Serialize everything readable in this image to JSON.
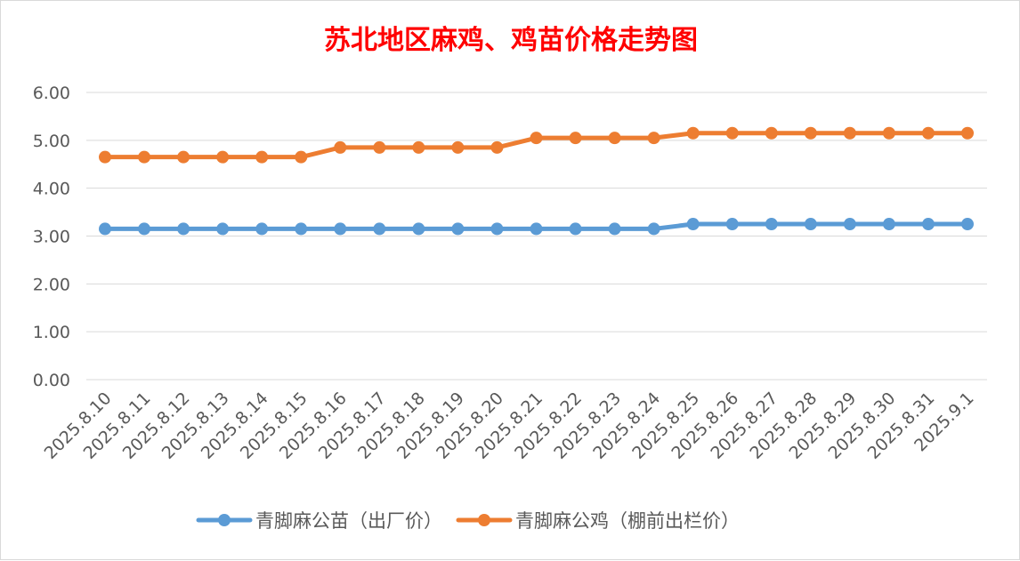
{
  "chart_data": {
    "type": "line",
    "title": "苏北地区麻鸡、鸡苗价格走势图",
    "categories": [
      "2025.8.10",
      "2025.8.11",
      "2025.8.12",
      "2025.8.13",
      "2025.8.14",
      "2025.8.15",
      "2025.8.16",
      "2025.8.17",
      "2025.8.18",
      "2025.8.19",
      "2025.8.20",
      "2025.8.21",
      "2025.8.22",
      "2025.8.23",
      "2025.8.24",
      "2025.8.25",
      "2025.8.26",
      "2025.8.27",
      "2025.8.28",
      "2025.8.29",
      "2025.8.30",
      "2025.8.31",
      "2025.9.1"
    ],
    "series": [
      {
        "name": "青脚麻公苗（出厂价）",
        "color": "#5b9bd5",
        "values": [
          3.15,
          3.15,
          3.15,
          3.15,
          3.15,
          3.15,
          3.15,
          3.15,
          3.15,
          3.15,
          3.15,
          3.15,
          3.15,
          3.15,
          3.15,
          3.25,
          3.25,
          3.25,
          3.25,
          3.25,
          3.25,
          3.25,
          3.25
        ]
      },
      {
        "name": "青脚麻公鸡（棚前出栏价）",
        "color": "#ed7d31",
        "values": [
          4.65,
          4.65,
          4.65,
          4.65,
          4.65,
          4.65,
          4.85,
          4.85,
          4.85,
          4.85,
          4.85,
          5.05,
          5.05,
          5.05,
          5.05,
          5.15,
          5.15,
          5.15,
          5.15,
          5.15,
          5.15,
          5.15,
          5.15
        ]
      }
    ],
    "yticks": [
      "0.00",
      "1.00",
      "2.00",
      "3.00",
      "4.00",
      "5.00",
      "6.00"
    ],
    "ylim": [
      0,
      6
    ],
    "xlabel": "",
    "ylabel": "",
    "grid": true,
    "legend_position": "bottom"
  }
}
